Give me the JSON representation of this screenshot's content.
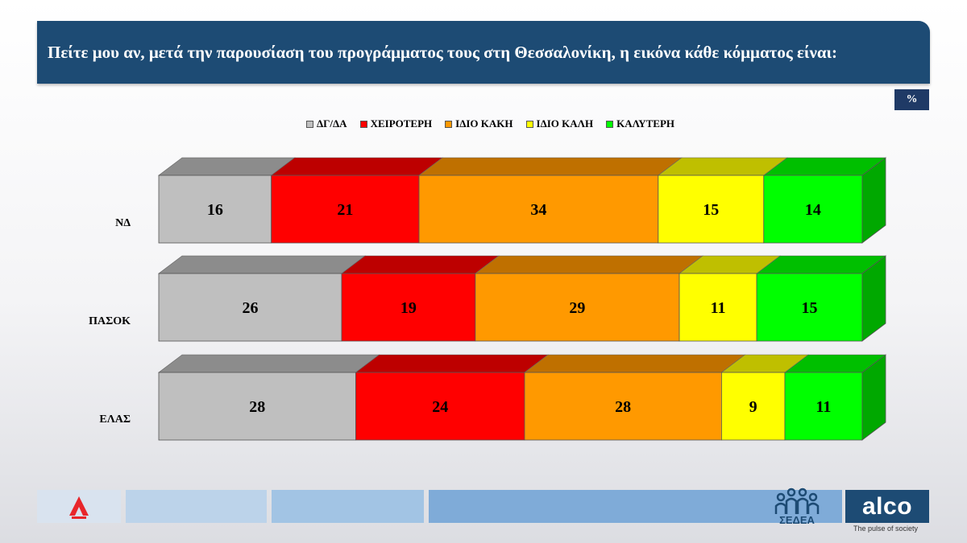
{
  "header": {
    "title": "Πείτε μου αν, μετά την παρουσίαση του προγράμματος τους στη Θεσσαλονίκη,  η εικόνα κάθε κόμματος είναι:",
    "unit_badge": "%"
  },
  "chart_data": {
    "type": "bar",
    "orientation": "horizontal",
    "stacked": true,
    "style": "3d",
    "categories": [
      "ΝΔ",
      "ΠΑΣΟΚ",
      "ΕΛΑΣ"
    ],
    "series": [
      {
        "name": "ΔΓ/ΔΑ",
        "color": "#bfbfbf",
        "top_color": "#8c8c8c",
        "values": [
          16,
          26,
          28
        ]
      },
      {
        "name": "ΧΕΙΡΟΤΕΡΗ",
        "color": "#ff0000",
        "top_color": "#bd0000",
        "values": [
          21,
          19,
          24
        ]
      },
      {
        "name": "ΙΔΙΟ ΚΑΚΗ",
        "color": "#ff9900",
        "top_color": "#bf7000",
        "values": [
          34,
          29,
          28
        ]
      },
      {
        "name": "ΙΔΙΟ ΚΑΛΗ",
        "color": "#ffff00",
        "top_color": "#bfbf00",
        "values": [
          15,
          11,
          9
        ]
      },
      {
        "name": "ΚΑΛΥΤΕΡΗ",
        "color": "#00ff00",
        "top_color": "#00bf00",
        "side_color": "#00a800",
        "values": [
          14,
          15,
          11
        ]
      }
    ],
    "legend_position": "top",
    "grid": false
  },
  "footer": {
    "alpha_icon": "alpha-logo",
    "sedea_label": "ΣΕΔΕΑ",
    "alco_label": "alco",
    "alco_tagline": "The pulse of society",
    "strip_colors": [
      "#d9e3ef",
      "#bcd3ea",
      "#a2c4e4",
      "#7fabd8"
    ]
  }
}
